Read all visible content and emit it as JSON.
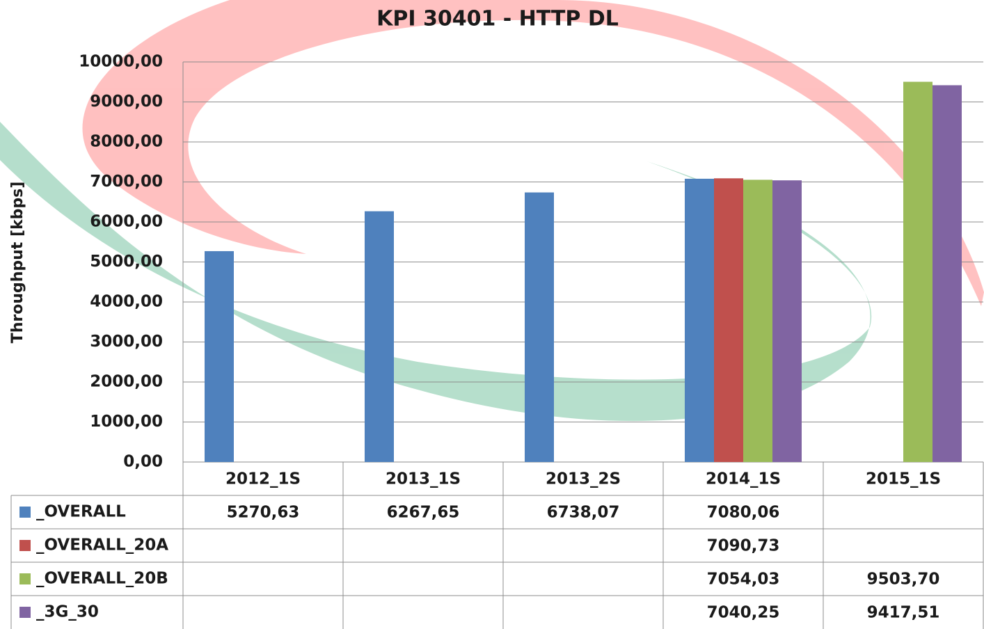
{
  "chart_data": {
    "type": "bar",
    "title": "KPI 30401 - HTTP DL",
    "y_label": "Throughput  [kbps]",
    "categories": [
      "2012_1S",
      "2013_1S",
      "2013_2S",
      "2014_1S",
      "2015_1S"
    ],
    "series": [
      {
        "name": "_OVERALL",
        "color": "#4f81bd",
        "values": [
          5270.63,
          6267.65,
          6738.07,
          7080.06,
          null
        ],
        "value_labels": [
          "5270,63",
          "6267,65",
          "6738,07",
          "7080,06",
          null
        ]
      },
      {
        "name": "_OVERALL_20A",
        "color": "#c0504d",
        "values": [
          null,
          null,
          null,
          7090.73,
          null
        ],
        "value_labels": [
          null,
          null,
          null,
          "7090,73",
          null
        ]
      },
      {
        "name": "_OVERALL_20B",
        "color": "#9bbb59",
        "values": [
          null,
          null,
          null,
          7054.03,
          9503.7
        ],
        "value_labels": [
          null,
          null,
          null,
          "7054,03",
          "9503,70"
        ]
      },
      {
        "name": "_3G_30",
        "color": "#8064a2",
        "values": [
          null,
          null,
          null,
          7040.25,
          9417.51
        ],
        "value_labels": [
          null,
          null,
          null,
          "7040,25",
          "9417,51"
        ]
      }
    ],
    "ylim": [
      0,
      10000
    ],
    "yticks": [
      {
        "value": 0,
        "label": "0,00"
      },
      {
        "value": 1000,
        "label": "1000,00"
      },
      {
        "value": 2000,
        "label": "2000,00"
      },
      {
        "value": 3000,
        "label": "3000,00"
      },
      {
        "value": 4000,
        "label": "4000,00"
      },
      {
        "value": 5000,
        "label": "5000,00"
      },
      {
        "value": 6000,
        "label": "6000,00"
      },
      {
        "value": 7000,
        "label": "7000,00"
      },
      {
        "value": 8000,
        "label": "8000,00"
      },
      {
        "value": 9000,
        "label": "9000,00"
      },
      {
        "value": 10000,
        "label": "10000,00"
      }
    ],
    "grid": true,
    "data_table": true
  }
}
